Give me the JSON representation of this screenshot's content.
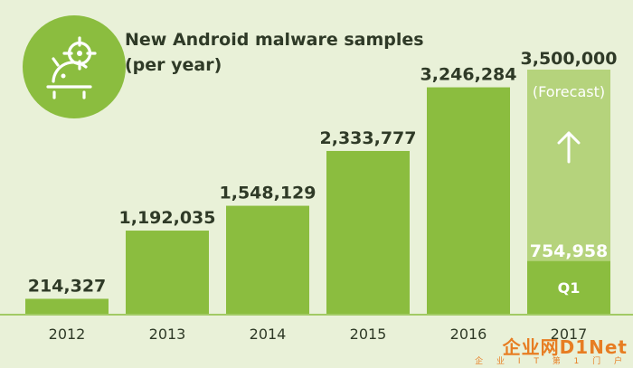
{
  "chart_data": {
    "type": "bar",
    "title": "New Android malware samples",
    "subtitle": "(per year)",
    "categories": [
      "2012",
      "2013",
      "2014",
      "2015",
      "2016",
      "2017"
    ],
    "values": [
      214327,
      1192035,
      1548129,
      2333777,
      3246284,
      754958
    ],
    "value_labels": [
      "214,327",
      "1,192,035",
      "1,548,129",
      "2,333,777",
      "3,246,284",
      "754,958"
    ],
    "forecast": {
      "category": "2017",
      "value": 3500000,
      "value_label": "3,500,000",
      "note": "(Forecast)",
      "actual_segment_label": "Q1"
    },
    "ylim": [
      0,
      3500000
    ],
    "grid": false,
    "xlabel": "",
    "ylabel": ""
  },
  "colors": {
    "background": "#e9f1d8",
    "bar": "#8bbd3f",
    "forecast_bar": "#b5d37c",
    "icon_circle": "#8bbd3f",
    "text": "#2f3a27"
  },
  "watermark": {
    "main": "企业网D1Net",
    "sub": "企 业 I T 第 1 门 户"
  }
}
